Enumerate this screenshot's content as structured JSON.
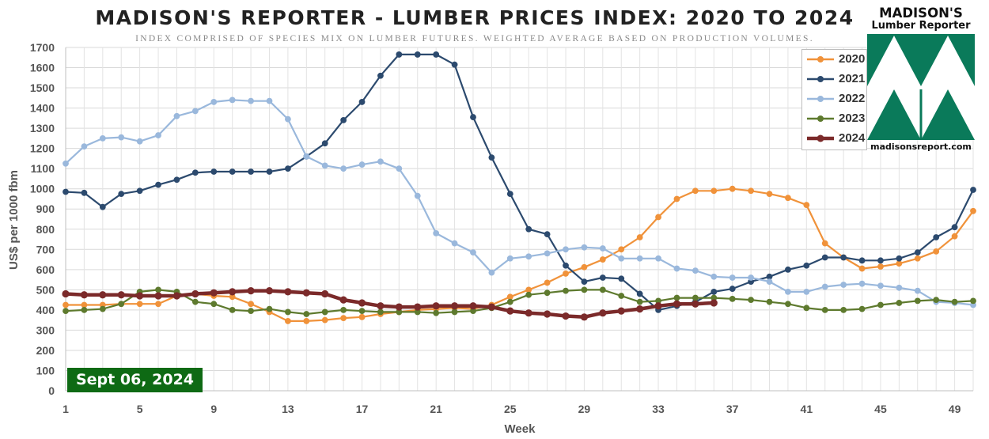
{
  "title": "MADISON'S REPORTER - LUMBER PRICES INDEX: 2020 TO 2024",
  "subtitle": "INDEX COMPRISED OF SPECIES MIX ON LUMBER FUTURES. WEIGHTED AVERAGE BASED ON PRODUCTION VOLUMES.",
  "logo": {
    "name": "MADISON'S",
    "sub": "Lumber Reporter",
    "url": "madisonsreport.com"
  },
  "date_badge": "Sept 06, 2024",
  "chart_data": {
    "type": "line",
    "title": "MADISON'S REPORTER - LUMBER PRICES INDEX: 2020 TO 2024",
    "xlabel": "Week",
    "ylabel": "US$ per 1000 fbm",
    "xlim": [
      1,
      50
    ],
    "ylim": [
      0,
      1700
    ],
    "x_ticks": [
      1,
      5,
      9,
      13,
      17,
      21,
      25,
      29,
      33,
      37,
      41,
      45,
      49
    ],
    "y_ticks": [
      0,
      100,
      200,
      300,
      400,
      500,
      600,
      700,
      800,
      900,
      1000,
      1100,
      1200,
      1300,
      1400,
      1500,
      1600,
      1700
    ],
    "grid": true,
    "legend_position": "top-right",
    "series": [
      {
        "name": "2020",
        "color": "#f0923a",
        "values": [
          425,
          425,
          425,
          430,
          430,
          430,
          470,
          480,
          470,
          465,
          430,
          390,
          345,
          345,
          350,
          360,
          365,
          380,
          390,
          400,
          405,
          410,
          405,
          425,
          465,
          500,
          535,
          580,
          612,
          650,
          700,
          760,
          860,
          950,
          990,
          990,
          1000,
          990,
          975,
          955,
          920,
          730,
          660,
          605,
          615,
          630,
          655,
          690,
          765,
          890
        ]
      },
      {
        "name": "2021",
        "color": "#2c4a6e",
        "values": [
          985,
          980,
          910,
          975,
          990,
          1020,
          1045,
          1080,
          1085,
          1085,
          1085,
          1085,
          1100,
          1160,
          1225,
          1340,
          1430,
          1560,
          1665,
          1665,
          1665,
          1615,
          1355,
          1155,
          975,
          800,
          775,
          620,
          540,
          560,
          555,
          480,
          400,
          420,
          440,
          490,
          505,
          540,
          565,
          600,
          620,
          660,
          660,
          645,
          645,
          655,
          685,
          760,
          810,
          995
        ]
      },
      {
        "name": "2022",
        "color": "#9ab8dc",
        "values": [
          1125,
          1210,
          1250,
          1255,
          1235,
          1265,
          1360,
          1385,
          1430,
          1440,
          1435,
          1435,
          1345,
          1160,
          1115,
          1100,
          1120,
          1135,
          1100,
          965,
          780,
          730,
          685,
          585,
          655,
          665,
          680,
          700,
          710,
          705,
          655,
          655,
          655,
          605,
          595,
          565,
          560,
          560,
          540,
          490,
          490,
          515,
          525,
          530,
          520,
          510,
          495,
          440,
          435,
          425
        ]
      },
      {
        "name": "2023",
        "color": "#5e7a2e",
        "values": [
          395,
          400,
          405,
          430,
          490,
          500,
          490,
          440,
          430,
          400,
          395,
          405,
          390,
          380,
          390,
          400,
          395,
          390,
          390,
          390,
          385,
          390,
          395,
          410,
          440,
          475,
          485,
          495,
          500,
          500,
          470,
          440,
          445,
          460,
          460,
          460,
          455,
          450,
          440,
          430,
          410,
          400,
          400,
          405,
          425,
          435,
          445,
          450,
          440,
          445
        ]
      },
      {
        "name": "2024",
        "color": "#7b2a2a",
        "values": [
          480,
          475,
          475,
          475,
          470,
          470,
          470,
          480,
          485,
          490,
          495,
          495,
          490,
          485,
          480,
          450,
          435,
          420,
          415,
          415,
          420,
          420,
          420,
          415,
          395,
          385,
          380,
          370,
          365,
          385,
          395,
          405,
          420,
          430,
          430,
          435
        ]
      }
    ]
  }
}
